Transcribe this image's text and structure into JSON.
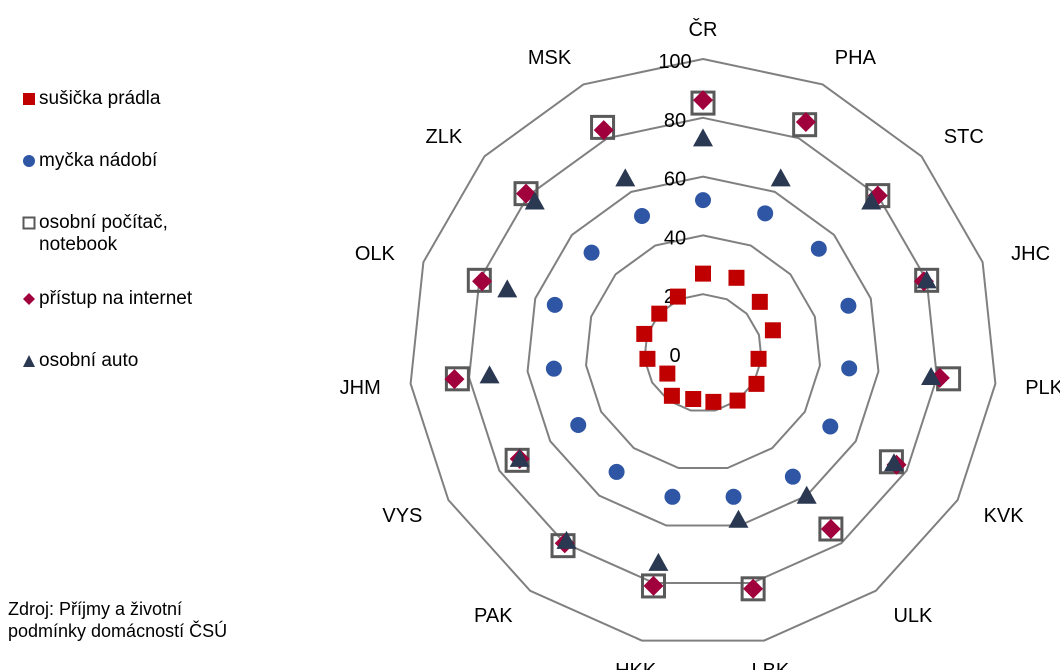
{
  "chart_data": {
    "type": "radar",
    "categories": [
      "ČR",
      "PHA",
      "STC",
      "JHC",
      "PLK",
      "KVK",
      "ULK",
      "LBK",
      "HKK",
      "PAK",
      "VYS",
      "JHM",
      "OLK",
      "ZLK",
      "MSK"
    ],
    "rlim": [
      0,
      100
    ],
    "rticks": [
      "0",
      "20",
      "40",
      "60",
      "80",
      "100"
    ],
    "grid": true,
    "legend_position": "left",
    "series": [
      {
        "name": "sušička prádla",
        "marker": "square",
        "color": "#c00000",
        "values": [
          27,
          28,
          26,
          25,
          19,
          21,
          20,
          17,
          16,
          18,
          14,
          19,
          21,
          20,
          21
        ]
      },
      {
        "name": "myčka nádobí",
        "marker": "circle",
        "color": "#2e56a4",
        "values": [
          52,
          52,
          53,
          52,
          50,
          50,
          52,
          50,
          50,
          50,
          49,
          51,
          53,
          51,
          51
        ]
      },
      {
        "name": "osobní počítač, notebook",
        "marker": "hollow-square",
        "color": "#595959",
        "values": [
          85,
          85,
          80,
          80,
          84,
          74,
          74,
          82,
          81,
          81,
          73,
          84,
          80,
          81,
          84
        ]
      },
      {
        "name": "přístup na internet",
        "marker": "diamond",
        "color": "#a0003c",
        "values": [
          86,
          86,
          80,
          79,
          81,
          76,
          74,
          82,
          81,
          80,
          72,
          85,
          79,
          81,
          83
        ]
      },
      {
        "name": "osobní auto",
        "marker": "triangle",
        "color": "#2b3852",
        "values": [
          73,
          65,
          77,
          80,
          78,
          75,
          60,
          58,
          73,
          79,
          72,
          73,
          70,
          77,
          65
        ]
      }
    ]
  },
  "legend": {
    "items": [
      {
        "label": "sušička prádla",
        "marker": "square",
        "color": "#c00000"
      },
      {
        "label": "myčka nádobí",
        "marker": "circle",
        "color": "#2e56a4"
      },
      {
        "label": "osobní počítač,\nnotebook",
        "marker": "hollow-square",
        "color": "#595959"
      },
      {
        "label": "přístup na internet",
        "marker": "diamond",
        "color": "#a0003c"
      },
      {
        "label": "osobní auto",
        "marker": "triangle",
        "color": "#2b3852"
      }
    ]
  },
  "source_note": "Zdroj: Příjmy a životní\npodmínky domácností ČSÚ",
  "colors": {
    "grid": "#808080"
  }
}
